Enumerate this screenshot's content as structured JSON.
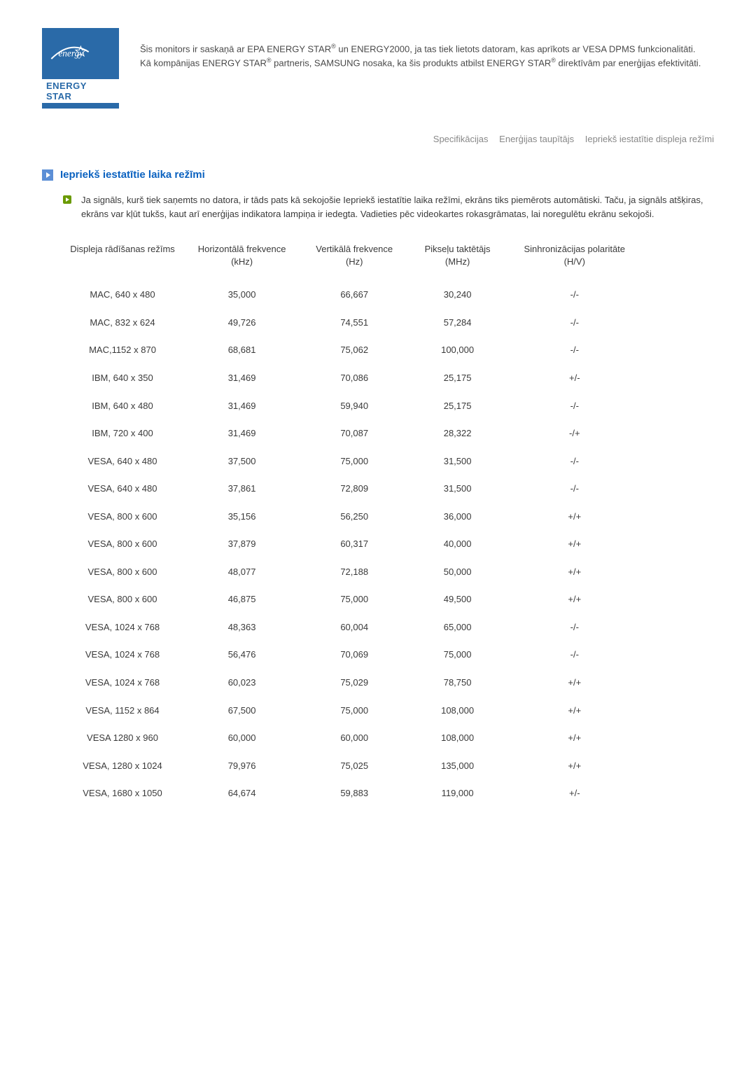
{
  "logo": {
    "script_text": "energy",
    "label": "ENERGY STAR"
  },
  "intro": {
    "line1a": "Šis monitors ir saskaņā ar EPA ENERGY STAR",
    "line1b": " un ENERGY2000, ja tas tiek lietots datoram, kas aprīkots ar VESA DPMS funkcionalitāti.",
    "line2a": "Kā kompānijas ENERGY STAR",
    "line2b": " partneris, SAMSUNG nosaka, ka šis produkts atbilst ENERGY STAR",
    "line2c": " direktīvām par enerģijas efektivitāti."
  },
  "tabs": {
    "t1": "Specifikācijas",
    "t2": "Enerģijas taupītājs",
    "t3": "Iepriekš iestatītie displeja režīmi"
  },
  "section": {
    "title": "Iepriekš iestatītie laika režīmi",
    "description": "Ja signāls, kurš tiek saņemts no datora, ir tāds pats kā sekojošie Iepriekš iestatītie laika režīmi, ekrāns tiks piemērots automātiski. Taču, ja signāls atšķiras, ekrāns var kļūt tukšs, kaut arī enerģijas indikatora lampiņa ir iedegta. Vadieties pēc videokartes rokasgrāmatas, lai noregulētu ekrānu sekojoši."
  },
  "table": {
    "headers": {
      "c1": "Displeja rādīšanas režīms",
      "c2": "Horizontālā frekvence (kHz)",
      "c3": "Vertikālā frekvence (Hz)",
      "c4": "Pikseļu taktētājs (MHz)",
      "c5": "Sinhronizācijas polaritāte (H/V)"
    },
    "rows": [
      {
        "mode": "MAC, 640 x 480",
        "h": "35,000",
        "v": "66,667",
        "p": "30,240",
        "s": "-/-"
      },
      {
        "mode": "MAC, 832 x 624",
        "h": "49,726",
        "v": "74,551",
        "p": "57,284",
        "s": "-/-"
      },
      {
        "mode": "MAC,1152 x 870",
        "h": "68,681",
        "v": "75,062",
        "p": "100,000",
        "s": "-/-"
      },
      {
        "mode": "IBM, 640 x 350",
        "h": "31,469",
        "v": "70,086",
        "p": "25,175",
        "s": "+/-"
      },
      {
        "mode": "IBM, 640 x 480",
        "h": "31,469",
        "v": "59,940",
        "p": "25,175",
        "s": "-/-"
      },
      {
        "mode": "IBM, 720 x 400",
        "h": "31,469",
        "v": "70,087",
        "p": "28,322",
        "s": "-/+"
      },
      {
        "mode": "VESA, 640 x 480",
        "h": "37,500",
        "v": "75,000",
        "p": "31,500",
        "s": "-/-"
      },
      {
        "mode": "VESA, 640 x 480",
        "h": "37,861",
        "v": "72,809",
        "p": "31,500",
        "s": "-/-"
      },
      {
        "mode": "VESA, 800 x 600",
        "h": "35,156",
        "v": "56,250",
        "p": "36,000",
        "s": "+/+"
      },
      {
        "mode": "VESA, 800 x 600",
        "h": "37,879",
        "v": "60,317",
        "p": "40,000",
        "s": "+/+"
      },
      {
        "mode": "VESA, 800 x 600",
        "h": "48,077",
        "v": "72,188",
        "p": "50,000",
        "s": "+/+"
      },
      {
        "mode": "VESA, 800 x 600",
        "h": "46,875",
        "v": "75,000",
        "p": "49,500",
        "s": "+/+"
      },
      {
        "mode": "VESA, 1024 x 768",
        "h": "48,363",
        "v": "60,004",
        "p": "65,000",
        "s": "-/-"
      },
      {
        "mode": "VESA, 1024 x 768",
        "h": "56,476",
        "v": "70,069",
        "p": "75,000",
        "s": "-/-"
      },
      {
        "mode": "VESA, 1024 x 768",
        "h": "60,023",
        "v": "75,029",
        "p": "78,750",
        "s": "+/+"
      },
      {
        "mode": "VESA, 1152 x 864",
        "h": "67,500",
        "v": "75,000",
        "p": "108,000",
        "s": "+/+"
      },
      {
        "mode": "VESA 1280 x 960",
        "h": "60,000",
        "v": "60,000",
        "p": "108,000",
        "s": "+/+"
      },
      {
        "mode": "VESA, 1280 x 1024",
        "h": "79,976",
        "v": "75,025",
        "p": "135,000",
        "s": "+/+"
      },
      {
        "mode": "VESA, 1680 x 1050",
        "h": "64,674",
        "v": "59,883",
        "p": "119,000",
        "s": "+/-"
      }
    ]
  },
  "colors": {
    "brand_blue": "#2a6aa8",
    "title_blue": "#0b62c0",
    "bullet_green": "#6a9a00",
    "tab_gray": "#888888",
    "text": "#3a3a3a"
  }
}
